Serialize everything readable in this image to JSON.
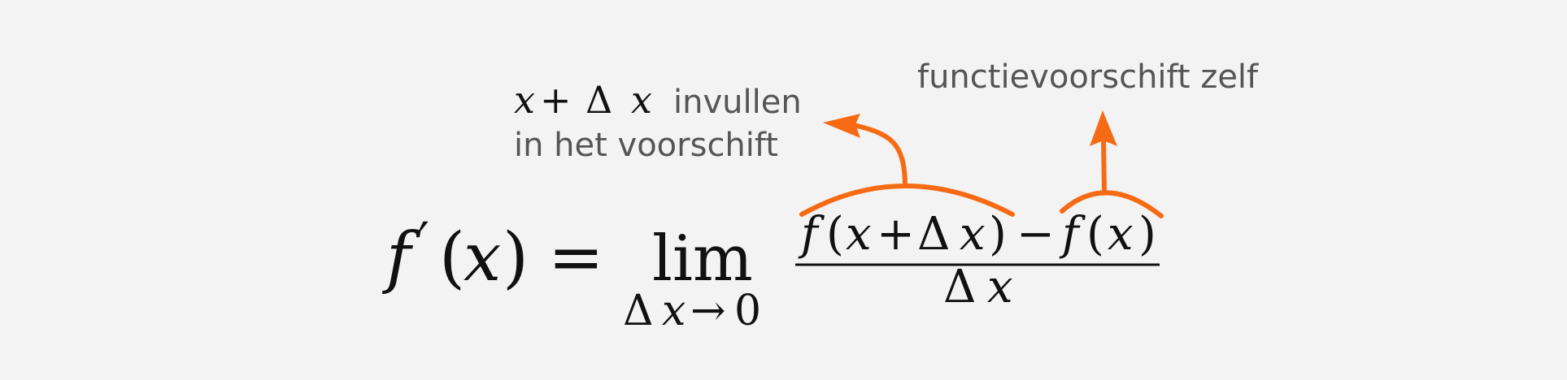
{
  "colors": {
    "accent": "#f76a14",
    "math_text": "#111111",
    "note_text": "#555555",
    "background": "#f3f3f3"
  },
  "formula": {
    "lhs_f": "f",
    "lhs_prime": "′",
    "lhs_open": "(",
    "lhs_x": "x",
    "lhs_close": ")",
    "equals": "=",
    "lim": "lim",
    "lim_sub_delta": "Δ",
    "lim_sub_x": "x",
    "lim_sub_arrow": "→",
    "lim_sub_zero": "0",
    "num_f1": "f",
    "num_open1": "(",
    "num_x1": "x",
    "num_plus": "+",
    "num_delta": "Δ",
    "num_x2": "x",
    "num_close1": ")",
    "num_minus": "−",
    "num_f2": "f",
    "num_open2": "(",
    "num_x3": "x",
    "num_close2": ")",
    "den_delta": "Δ",
    "den_x": "x"
  },
  "annotations": {
    "left_math_x1": "x",
    "left_math_plus": "+",
    "left_math_delta": "Δ",
    "left_math_x2": "x",
    "left_line1_text": "invullen",
    "left_line2": "in het voorschift",
    "right_label": "functievoorschift zelf"
  }
}
